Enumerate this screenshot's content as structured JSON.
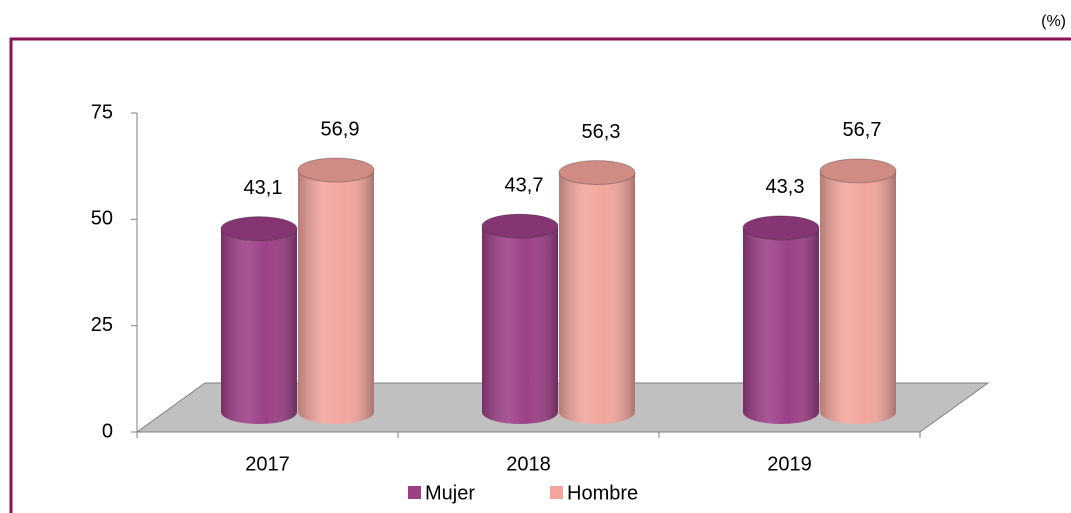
{
  "chart_data": {
    "type": "bar",
    "unit": "(%)",
    "categories": [
      "2017",
      "2018",
      "2019"
    ],
    "series": [
      {
        "name": "Mujer",
        "color": "#9c3f87",
        "values": [
          43.1,
          43.7,
          43.3
        ],
        "value_labels": [
          "43,1",
          "43,7",
          "43,3"
        ]
      },
      {
        "name": "Hombre",
        "color": "#f2a59d",
        "values": [
          56.9,
          56.3,
          56.7
        ],
        "value_labels": [
          "56,9",
          "56,3",
          "56,7"
        ]
      }
    ],
    "ylim": [
      0,
      75
    ],
    "yticks": [
      0,
      25,
      50,
      75
    ],
    "legend": "bottom"
  }
}
